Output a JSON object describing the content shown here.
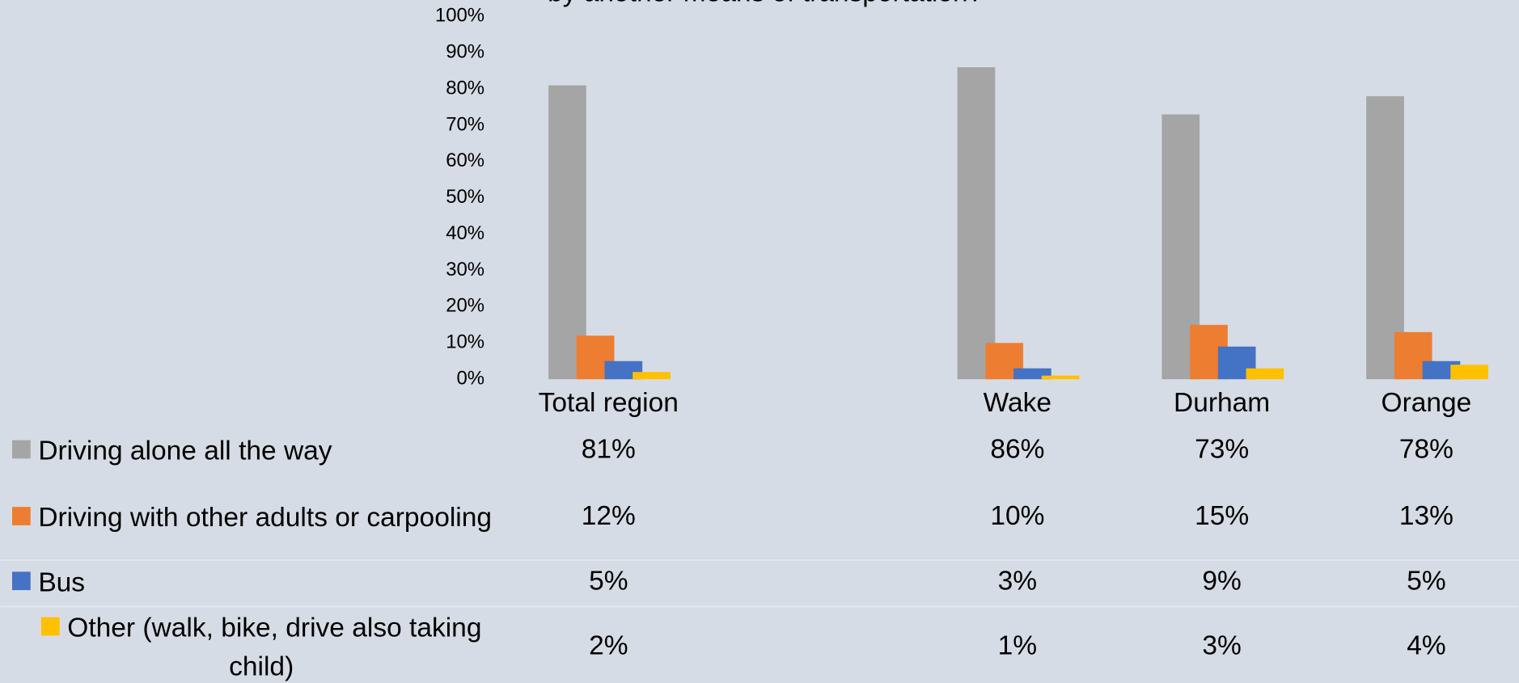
{
  "chart_data": {
    "type": "bar",
    "title": "by another means of transportation?",
    "categories": [
      "Total region",
      null,
      "Wake",
      "Durham",
      "Orange"
    ],
    "series": [
      {
        "name": "Driving alone all the way",
        "color": "#a5a5a5",
        "values": [
          81,
          null,
          86,
          73,
          78
        ],
        "value_labels": [
          "81%",
          null,
          "86%",
          "73%",
          "78%"
        ]
      },
      {
        "name": "Driving with other adults or carpooling",
        "color": "#ed7d31",
        "values": [
          12,
          null,
          10,
          15,
          13
        ],
        "value_labels": [
          "12%",
          null,
          "10%",
          "15%",
          "13%"
        ]
      },
      {
        "name": "Bus",
        "color": "#4472c4",
        "values": [
          5,
          null,
          3,
          9,
          5
        ],
        "value_labels": [
          "5%",
          null,
          "3%",
          "9%",
          "5%"
        ]
      },
      {
        "name": "Other (walk, bike, drive also taking child)",
        "color": "#ffc000",
        "values": [
          2,
          null,
          1,
          3,
          4
        ],
        "value_labels": [
          "2%",
          null,
          "1%",
          "3%",
          "4%"
        ]
      }
    ],
    "ylim": [
      0,
      100
    ],
    "yticks": [
      {
        "value": 0,
        "label": "0%"
      },
      {
        "value": 10,
        "label": "10%"
      },
      {
        "value": 20,
        "label": "20%"
      },
      {
        "value": 30,
        "label": "30%"
      },
      {
        "value": 40,
        "label": "40%"
      },
      {
        "value": 50,
        "label": "50%"
      },
      {
        "value": 60,
        "label": "60%"
      },
      {
        "value": 70,
        "label": "70%"
      },
      {
        "value": 80,
        "label": "80%"
      },
      {
        "value": 90,
        "label": "90%"
      },
      {
        "value": 100,
        "label": "100%"
      }
    ],
    "grid": false
  }
}
